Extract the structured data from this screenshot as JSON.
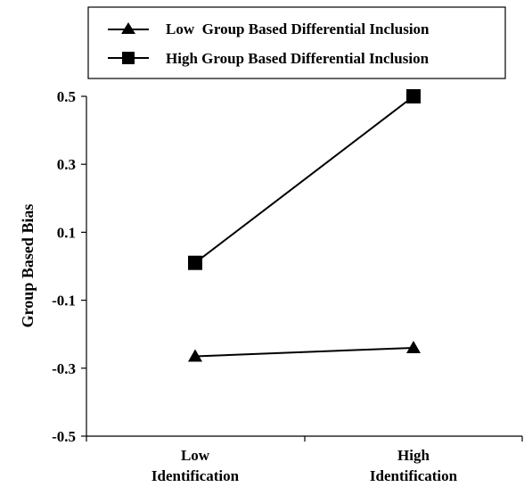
{
  "chart_data": {
    "type": "line",
    "categories": [
      "Low Identification",
      "High Identification"
    ],
    "category_labels": [
      [
        "Low",
        "Identification"
      ],
      [
        "High",
        "Identification"
      ]
    ],
    "ylabel": "Group Based Bias",
    "xlabel": "",
    "ylim": [
      -0.5,
      0.5
    ],
    "yticks": [
      "-0.5",
      "-0.3",
      "-0.1",
      "0.1",
      "0.3",
      "0.5"
    ],
    "ytick_values": [
      -0.5,
      -0.3,
      -0.1,
      0.1,
      0.3,
      0.5
    ],
    "legend_position": "top-right",
    "series": [
      {
        "name": "Low  Group Based Differential Inclusion",
        "marker": "triangle",
        "values": [
          -0.265,
          -0.24
        ]
      },
      {
        "name": "High Group Based Differential Inclusion",
        "marker": "square",
        "values": [
          0.01,
          0.5
        ]
      }
    ]
  }
}
